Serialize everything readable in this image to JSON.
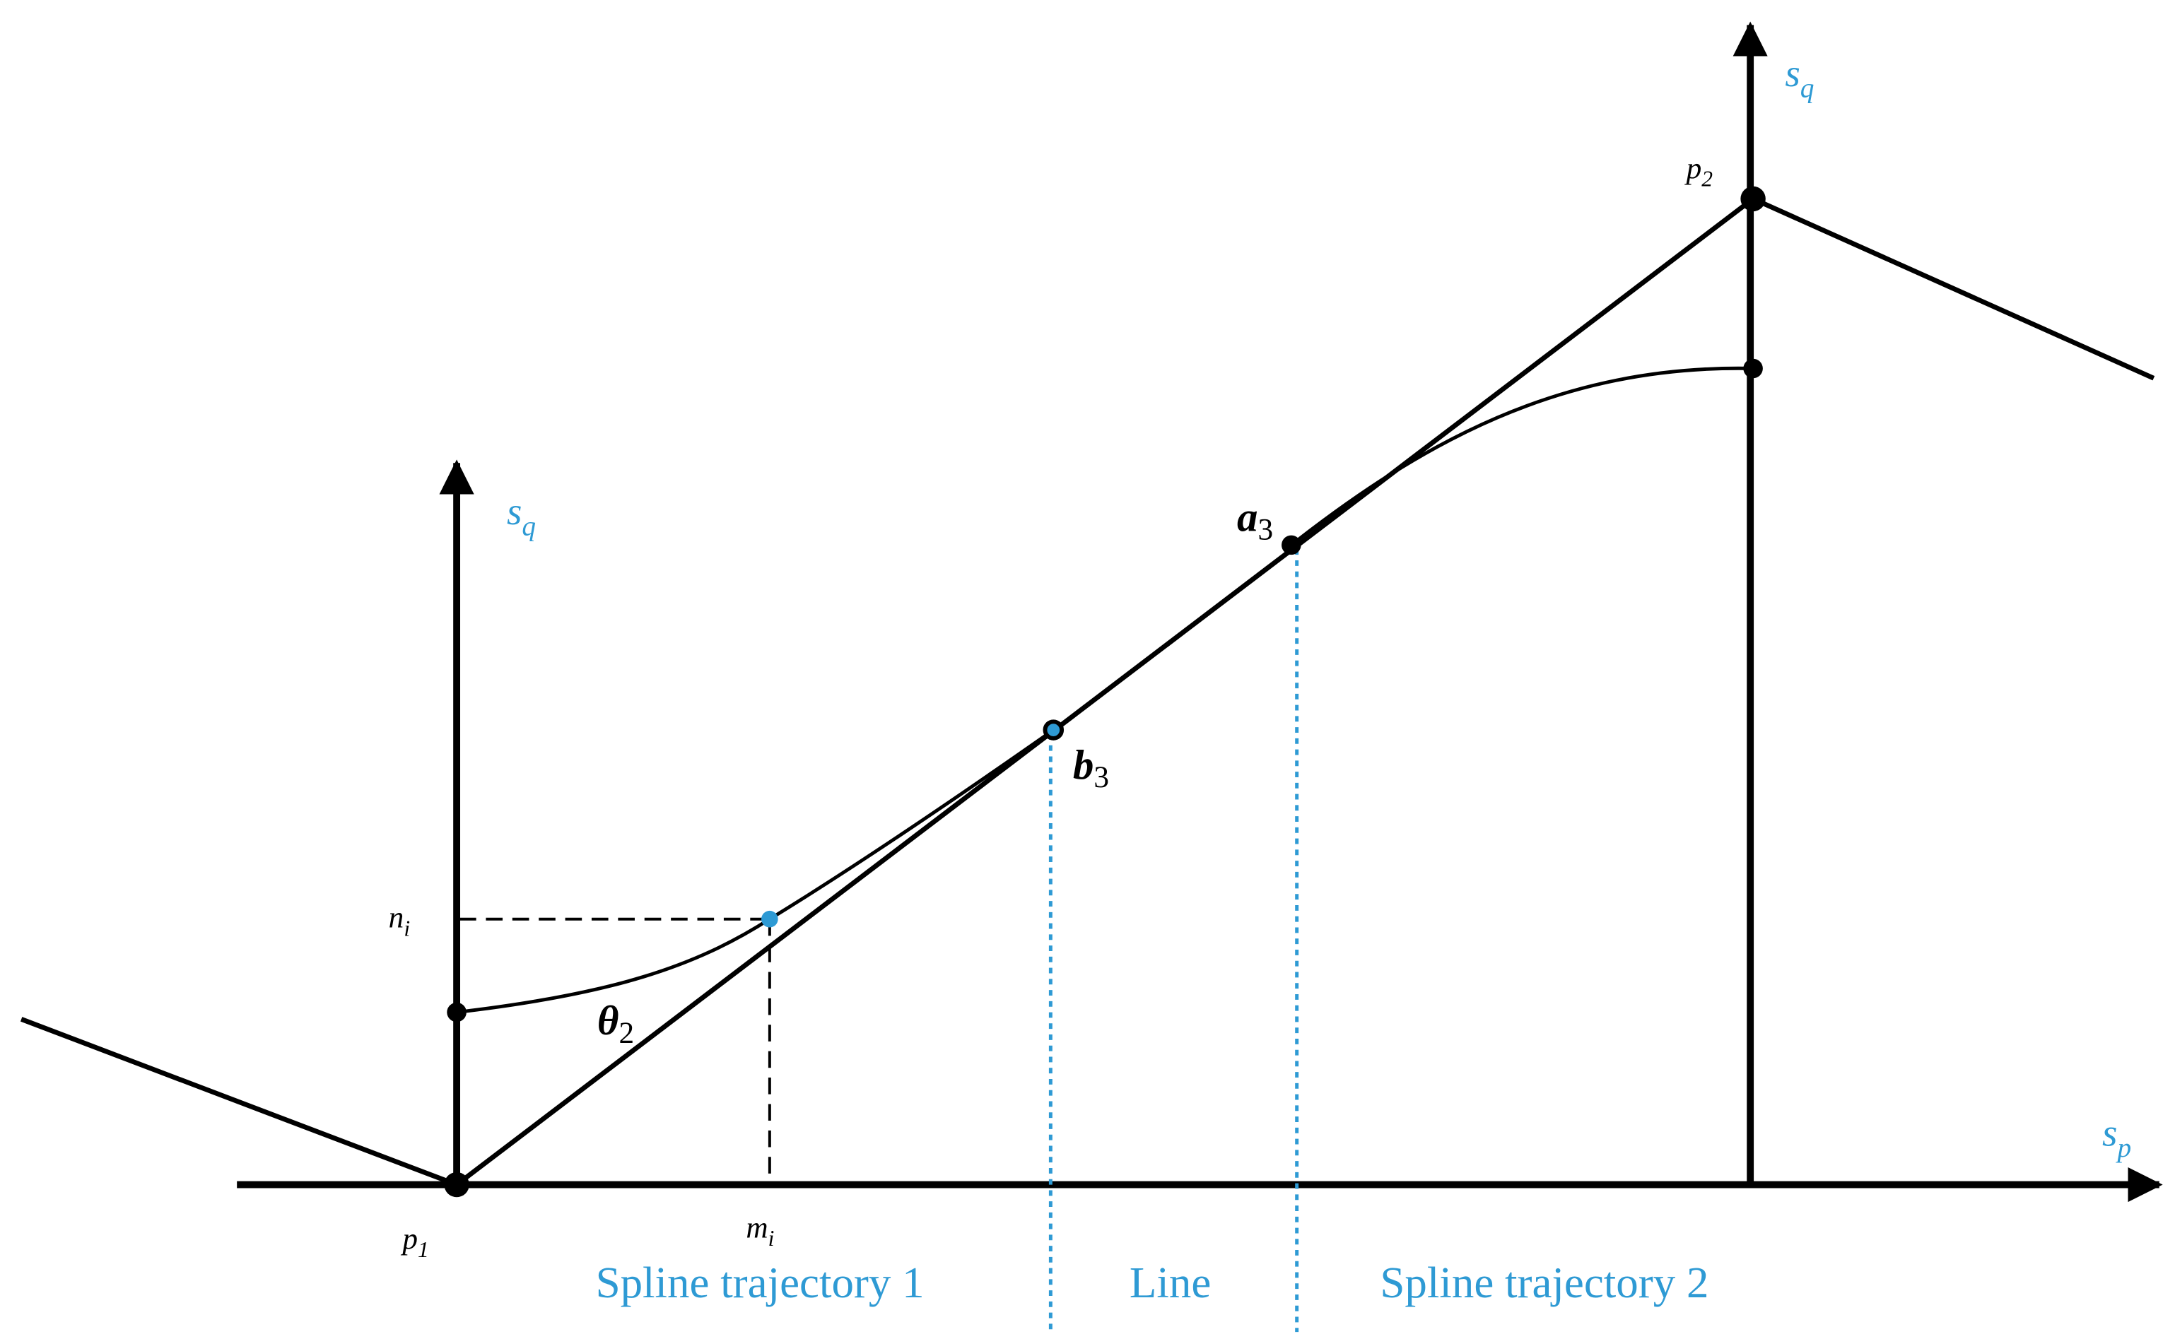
{
  "axes": {
    "left_vertical": {
      "symbol": "s",
      "subscript": "q"
    },
    "right_vertical": {
      "symbol": "s",
      "subscript": "q"
    },
    "horizontal": {
      "symbol": "s",
      "subscript": "p"
    }
  },
  "points": {
    "p1": {
      "symbol": "p",
      "subscript": "1"
    },
    "p2": {
      "symbol": "p",
      "subscript": "2"
    },
    "a3": {
      "symbol": "a",
      "subscript": "3"
    },
    "b3": {
      "symbol": "b",
      "subscript": "3"
    },
    "ni": {
      "symbol": "n",
      "subscript": "i"
    },
    "mi": {
      "symbol": "m",
      "subscript": "i"
    }
  },
  "angle": {
    "symbol": "θ",
    "subscript": "2"
  },
  "regions": [
    "Spline trajectory 1",
    "Line",
    "Spline trajectory 2"
  ]
}
